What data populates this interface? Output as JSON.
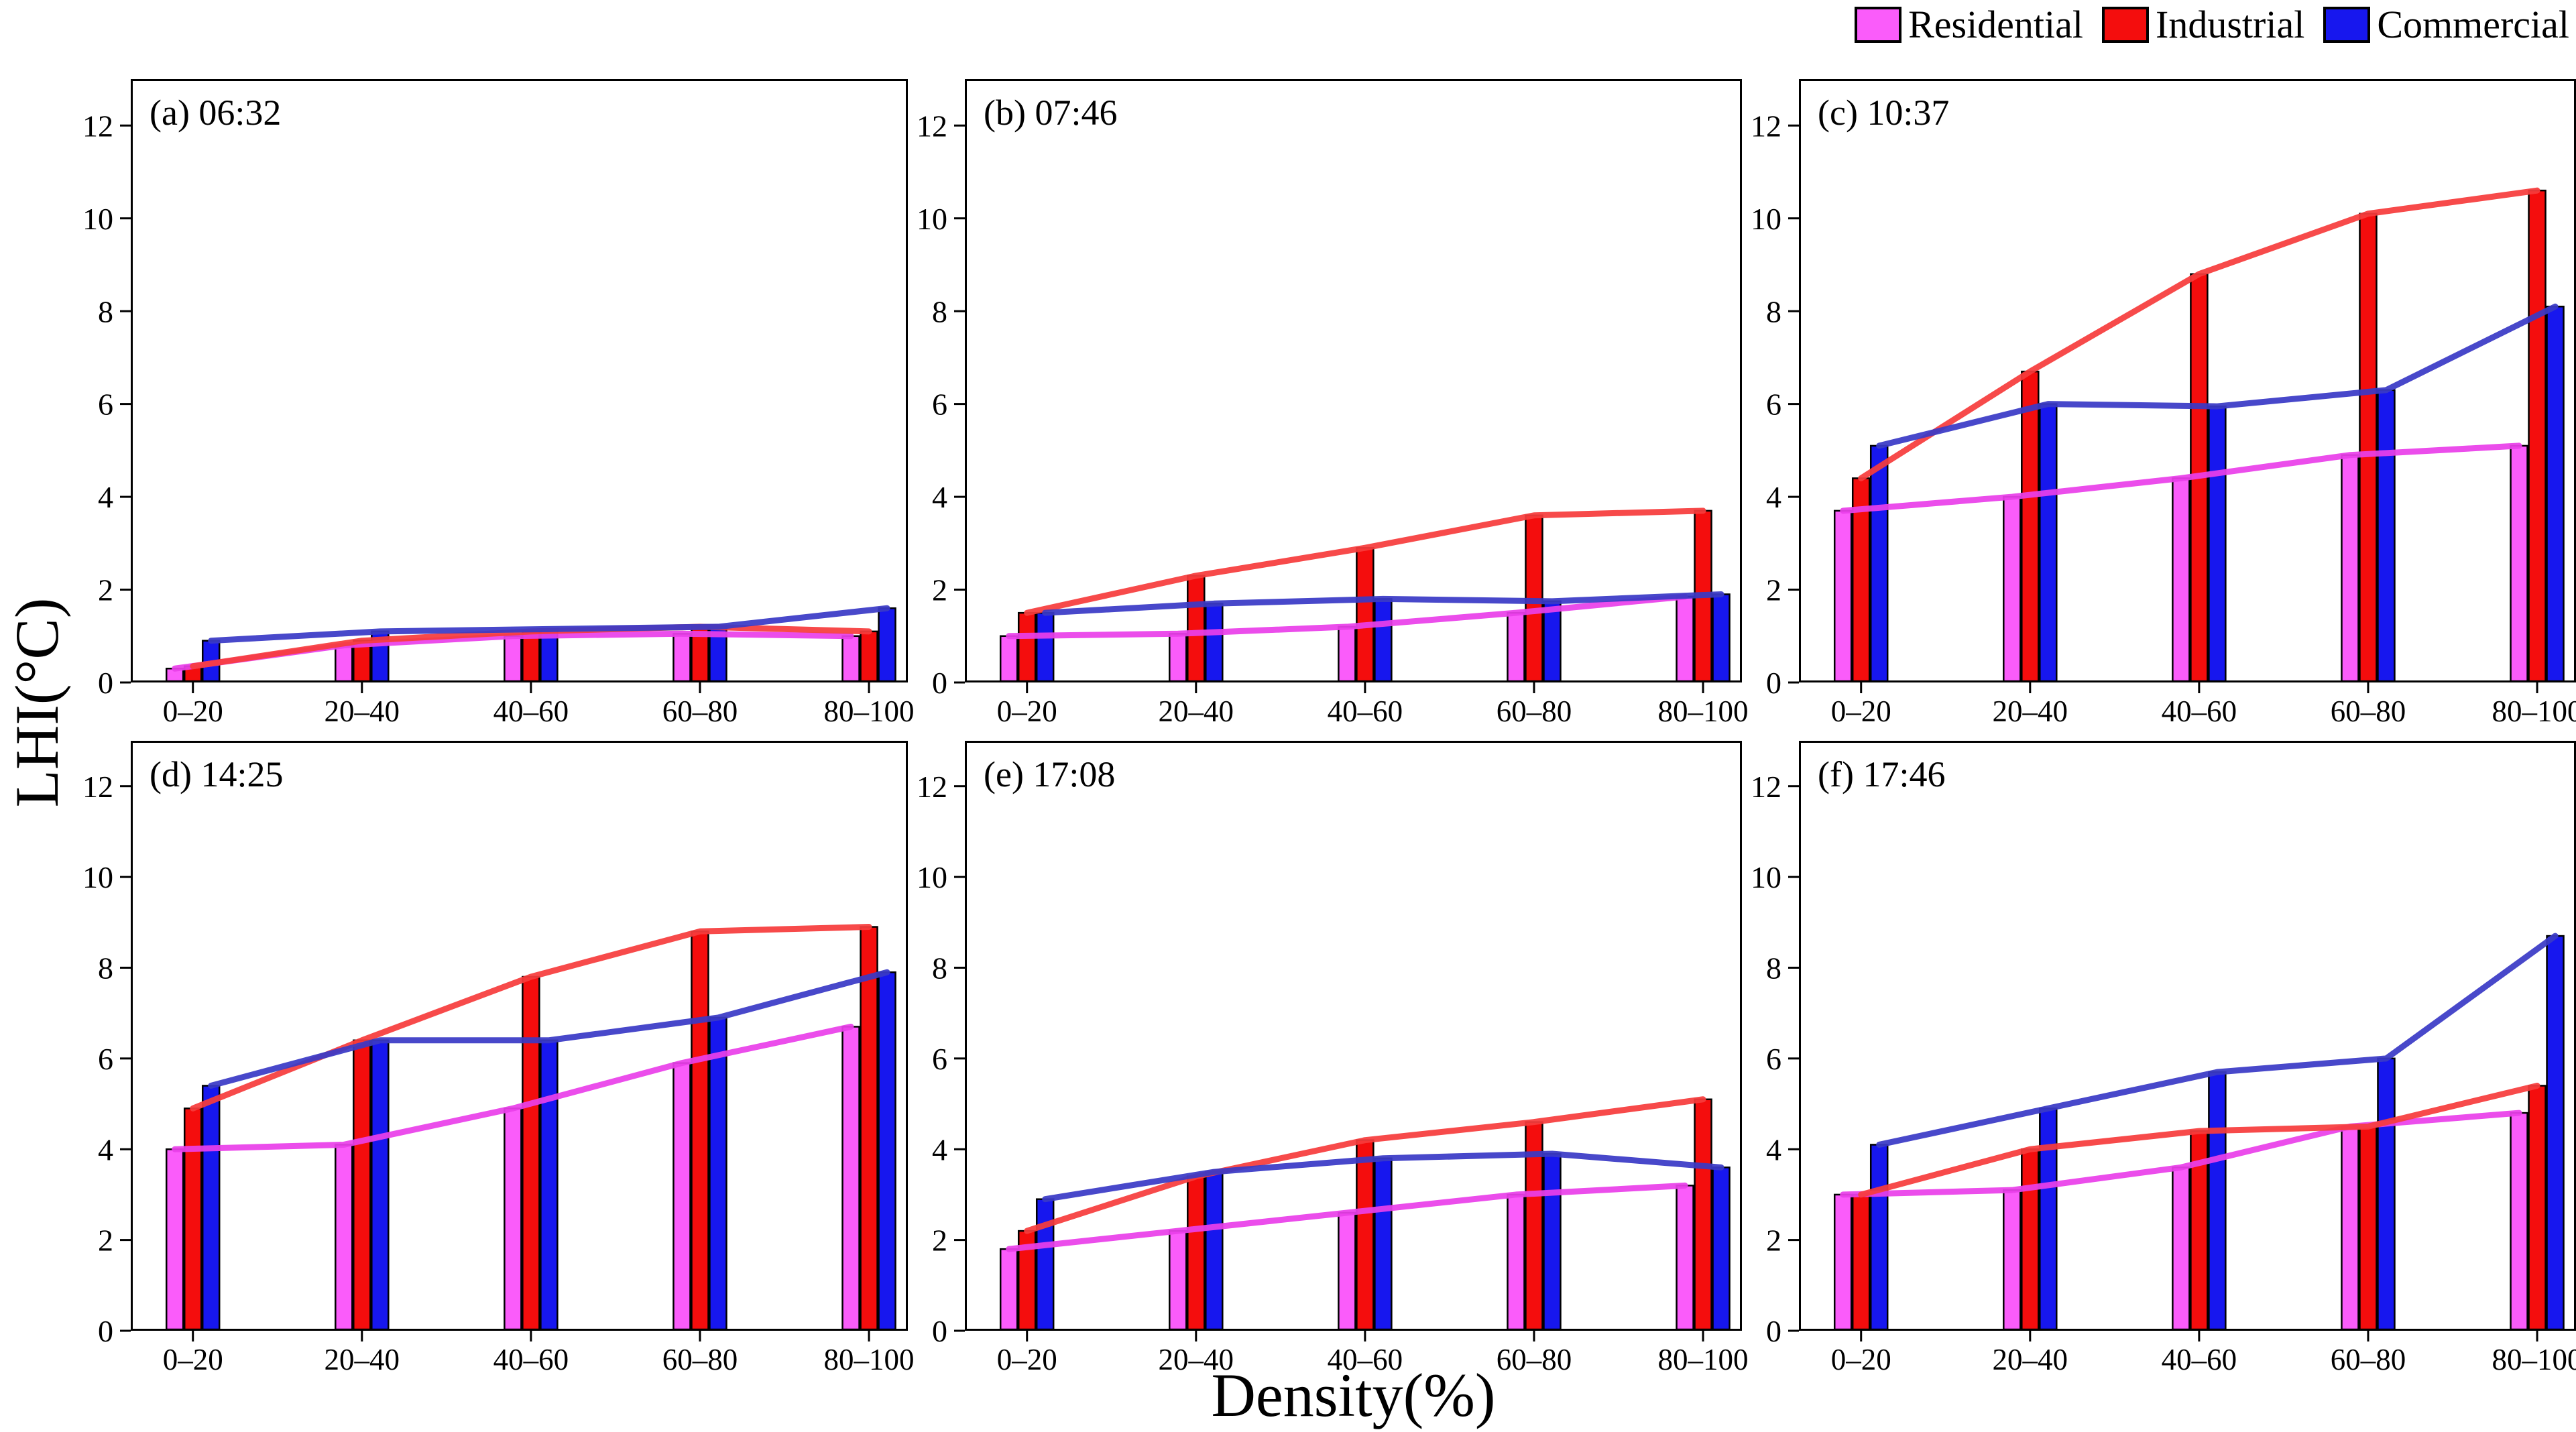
{
  "legend": {
    "items": [
      {
        "label": "Residential",
        "color": "#fa5cfa",
        "line_color": "#e93fe9"
      },
      {
        "label": "Industrial",
        "color": "#f40d0d",
        "line_color": "#f63c3c"
      },
      {
        "label": "Commercial",
        "color": "#1717ee",
        "line_color": "#3a3ac6"
      }
    ]
  },
  "chart_data": {
    "type": "bar",
    "title": "",
    "xlabel": "Density(%)",
    "ylabel": "LHI(°C)",
    "categories": [
      "0–20",
      "20–40",
      "40–60",
      "60–80",
      "80–100"
    ],
    "y_ticks": [
      0,
      2,
      4,
      6,
      8,
      10,
      12
    ],
    "ylim": [
      0,
      13
    ],
    "grid": false,
    "legend_position": "top-right",
    "series_names": [
      "Residential",
      "Industrial",
      "Commercial"
    ],
    "note": "Each subplot shows grouped bars with overlaid trend lines of the same values",
    "subplots": [
      {
        "label": "(a)",
        "time": "06:32",
        "series": [
          {
            "name": "Residential",
            "values": [
              0.3,
              0.8,
              1.0,
              1.05,
              1.0
            ]
          },
          {
            "name": "Industrial",
            "values": [
              0.35,
              0.9,
              1.1,
              1.2,
              1.1
            ]
          },
          {
            "name": "Commercial",
            "values": [
              0.9,
              1.1,
              1.15,
              1.2,
              1.6
            ]
          }
        ]
      },
      {
        "label": "(b)",
        "time": "07:46",
        "series": [
          {
            "name": "Residential",
            "values": [
              1.0,
              1.05,
              1.2,
              1.5,
              1.85
            ]
          },
          {
            "name": "Industrial",
            "values": [
              1.5,
              2.3,
              2.9,
              3.6,
              3.7
            ]
          },
          {
            "name": "Commercial",
            "values": [
              1.5,
              1.7,
              1.8,
              1.75,
              1.9
            ]
          }
        ]
      },
      {
        "label": "(c)",
        "time": "10:37",
        "series": [
          {
            "name": "Residential",
            "values": [
              3.7,
              4.0,
              4.4,
              4.9,
              5.1
            ]
          },
          {
            "name": "Industrial",
            "values": [
              4.4,
              6.7,
              8.8,
              10.1,
              10.6
            ]
          },
          {
            "name": "Commercial",
            "values": [
              5.1,
              6.0,
              5.95,
              6.3,
              8.1
            ]
          }
        ]
      },
      {
        "label": "(d)",
        "time": "14:25",
        "series": [
          {
            "name": "Residential",
            "values": [
              4.0,
              4.1,
              4.9,
              5.9,
              6.7
            ]
          },
          {
            "name": "Industrial",
            "values": [
              4.9,
              6.4,
              7.8,
              8.8,
              8.9
            ]
          },
          {
            "name": "Commercial",
            "values": [
              5.4,
              6.4,
              6.4,
              6.9,
              7.9
            ]
          }
        ]
      },
      {
        "label": "(e)",
        "time": "17:08",
        "series": [
          {
            "name": "Residential",
            "values": [
              1.8,
              2.2,
              2.6,
              3.0,
              3.2
            ]
          },
          {
            "name": "Industrial",
            "values": [
              2.2,
              3.4,
              4.2,
              4.6,
              5.1
            ]
          },
          {
            "name": "Commercial",
            "values": [
              2.9,
              3.5,
              3.8,
              3.9,
              3.6
            ]
          }
        ]
      },
      {
        "label": "(f)",
        "time": "17:46",
        "series": [
          {
            "name": "Residential",
            "values": [
              3.0,
              3.1,
              3.6,
              4.5,
              4.8
            ]
          },
          {
            "name": "Industrial",
            "values": [
              3.0,
              4.0,
              4.4,
              4.5,
              5.4
            ]
          },
          {
            "name": "Commercial",
            "values": [
              4.1,
              4.9,
              5.7,
              6.0,
              8.7
            ]
          }
        ]
      }
    ]
  }
}
